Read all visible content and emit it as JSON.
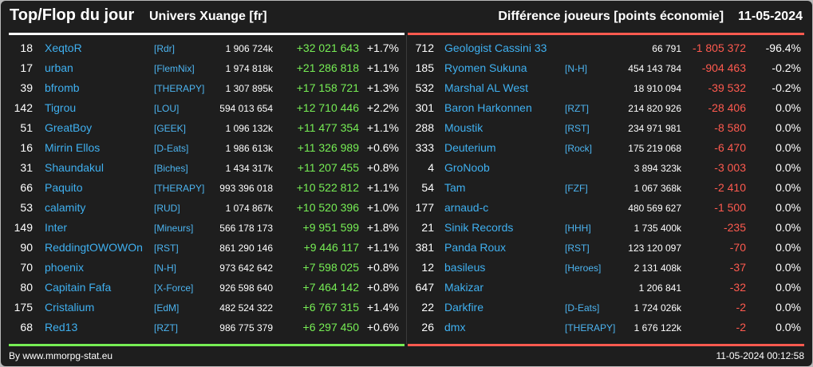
{
  "header": {
    "title": "Top/Flop du jour",
    "universe": "Univers Xuange [fr]",
    "metric": "Différence joueurs [points économie]",
    "date": "11-05-2024"
  },
  "colors": {
    "positive": "#77ee55",
    "negative": "#ff5a4f",
    "name": "#3fb0f0",
    "background": "#1e1e1e"
  },
  "top": [
    {
      "rank": "18",
      "name": "XeqtoR",
      "alliance": "[Rdr]",
      "points": "1 906 724k",
      "diff": "+32 021 643",
      "pct": "+1.7%"
    },
    {
      "rank": "17",
      "name": "urban",
      "alliance": "[FlemNix]",
      "points": "1 974 818k",
      "diff": "+21 286 818",
      "pct": "+1.1%"
    },
    {
      "rank": "39",
      "name": "bfromb",
      "alliance": "[THERAPY]",
      "points": "1 307 895k",
      "diff": "+17 158 721",
      "pct": "+1.3%"
    },
    {
      "rank": "142",
      "name": "Tigrou",
      "alliance": "[LOU]",
      "points": "594 013 654",
      "diff": "+12 710 446",
      "pct": "+2.2%"
    },
    {
      "rank": "51",
      "name": "GreatBoy",
      "alliance": "[GEEK]",
      "points": "1 096 132k",
      "diff": "+11 477 354",
      "pct": "+1.1%"
    },
    {
      "rank": "16",
      "name": "Mirrin Ellos",
      "alliance": "[D-Eats]",
      "points": "1 986 613k",
      "diff": "+11 326 989",
      "pct": "+0.6%"
    },
    {
      "rank": "31",
      "name": "Shaundakul",
      "alliance": "[Biches]",
      "points": "1 434 317k",
      "diff": "+11 207 455",
      "pct": "+0.8%"
    },
    {
      "rank": "66",
      "name": "Paquito",
      "alliance": "[THERAPY]",
      "points": "993 396 018",
      "diff": "+10 522 812",
      "pct": "+1.1%"
    },
    {
      "rank": "53",
      "name": "calamity",
      "alliance": "[RUD]",
      "points": "1 074 867k",
      "diff": "+10 520 396",
      "pct": "+1.0%"
    },
    {
      "rank": "149",
      "name": "Inter",
      "alliance": "[Mineurs]",
      "points": "566 178 173",
      "diff": "+9 951 599",
      "pct": "+1.8%"
    },
    {
      "rank": "90",
      "name": "ReddingtOWOWOn",
      "alliance": "[RST]",
      "points": "861 290 146",
      "diff": "+9 446 117",
      "pct": "+1.1%"
    },
    {
      "rank": "70",
      "name": "phoenix",
      "alliance": "[N-H]",
      "points": "973 642 642",
      "diff": "+7 598 025",
      "pct": "+0.8%"
    },
    {
      "rank": "80",
      "name": "Capitain Fafa",
      "alliance": "[X-Force]",
      "points": "926 598 640",
      "diff": "+7 464 142",
      "pct": "+0.8%"
    },
    {
      "rank": "175",
      "name": "Cristalium",
      "alliance": "[EdM]",
      "points": "482 524 322",
      "diff": "+6 767 315",
      "pct": "+1.4%"
    },
    {
      "rank": "68",
      "name": "Red13",
      "alliance": "[RZT]",
      "points": "986 775 379",
      "diff": "+6 297 450",
      "pct": "+0.6%"
    }
  ],
  "flop": [
    {
      "rank": "712",
      "name": "Geologist Cassini 33",
      "alliance": "",
      "points": "66 791",
      "diff": "-1 805 372",
      "pct": "-96.4%"
    },
    {
      "rank": "185",
      "name": "Ryomen Sukuna",
      "alliance": "[N-H]",
      "points": "454 143 784",
      "diff": "-904 463",
      "pct": "-0.2%"
    },
    {
      "rank": "532",
      "name": "Marshal AL West",
      "alliance": "",
      "points": "18 910 094",
      "diff": "-39 532",
      "pct": "-0.2%"
    },
    {
      "rank": "301",
      "name": "Baron Harkonnen",
      "alliance": "[RZT]",
      "points": "214 820 926",
      "diff": "-28 406",
      "pct": "0.0%"
    },
    {
      "rank": "288",
      "name": "Moustik",
      "alliance": "[RST]",
      "points": "234 971 981",
      "diff": "-8 580",
      "pct": "0.0%"
    },
    {
      "rank": "333",
      "name": "Deuterium",
      "alliance": "[Rock]",
      "points": "175 219 068",
      "diff": "-6 470",
      "pct": "0.0%"
    },
    {
      "rank": "4",
      "name": "GroNoob",
      "alliance": "",
      "points": "3 894 323k",
      "diff": "-3 003",
      "pct": "0.0%"
    },
    {
      "rank": "54",
      "name": "Tam",
      "alliance": "[FZF]",
      "points": "1 067 368k",
      "diff": "-2 410",
      "pct": "0.0%"
    },
    {
      "rank": "177",
      "name": "arnaud-c",
      "alliance": "",
      "points": "480 569 627",
      "diff": "-1 500",
      "pct": "0.0%"
    },
    {
      "rank": "21",
      "name": "Sinik Records",
      "alliance": "[HHH]",
      "points": "1 735 400k",
      "diff": "-235",
      "pct": "0.0%"
    },
    {
      "rank": "381",
      "name": "Panda Roux",
      "alliance": "[RST]",
      "points": "123 120 097",
      "diff": "-70",
      "pct": "0.0%"
    },
    {
      "rank": "12",
      "name": "basileus",
      "alliance": "[Heroes]",
      "points": "2 131 408k",
      "diff": "-37",
      "pct": "0.0%"
    },
    {
      "rank": "647",
      "name": "Makizar",
      "alliance": "",
      "points": "1 206 841",
      "diff": "-32",
      "pct": "0.0%"
    },
    {
      "rank": "22",
      "name": "Darkfire",
      "alliance": "[D-Eats]",
      "points": "1 724 026k",
      "diff": "-2",
      "pct": "0.0%"
    },
    {
      "rank": "26",
      "name": "dmx",
      "alliance": "[THERAPY]",
      "points": "1 676 122k",
      "diff": "-2",
      "pct": "0.0%"
    }
  ],
  "footer": {
    "source": "By www.mmorpg-stat.eu",
    "timestamp": "11-05-2024 00:12:58"
  }
}
